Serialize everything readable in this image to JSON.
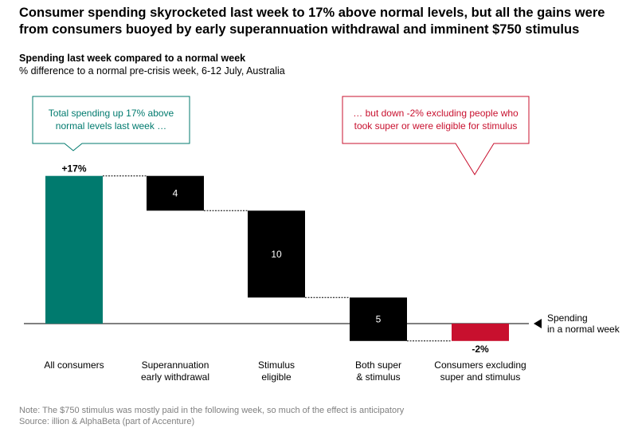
{
  "header": {
    "title_line1": "Consumer spending skyrocketed last week to 17% above normal levels, but all the gains were",
    "title_line2": "from consumers buoyed by early superannuation withdrawal and imminent $750 stimulus"
  },
  "chart_data": {
    "type": "bar",
    "subtype": "waterfall",
    "title": "Spending last week compared to a normal week",
    "subtitle": "% difference to a normal pre-crisis week, 6-12 July, Australia",
    "categories": [
      [
        "All consumers"
      ],
      [
        "Superannuation",
        "early withdrawal"
      ],
      [
        "Stimulus",
        "eligible"
      ],
      [
        "Both super",
        "& stimulus"
      ],
      [
        "Consumers excluding",
        "super and stimulus"
      ]
    ],
    "steps": [
      {
        "kind": "total",
        "value": 17,
        "label": "+17%",
        "color": "#007A6E"
      },
      {
        "kind": "decrease",
        "value": 4,
        "label": "4",
        "color": "#000000"
      },
      {
        "kind": "decrease",
        "value": 10,
        "label": "10",
        "color": "#000000"
      },
      {
        "kind": "decrease",
        "value": 5,
        "label": "5",
        "color": "#000000"
      },
      {
        "kind": "total",
        "value": -2,
        "label": "-2%",
        "color": "#C8102E"
      }
    ],
    "baseline_label": [
      "Spending",
      "in a normal week"
    ],
    "ylim": [
      -2.5,
      19
    ],
    "gridlines": false,
    "callouts": [
      {
        "lines": [
          "Total spending up 17% above",
          "normal levels last week …"
        ],
        "color": "#007A6E"
      },
      {
        "lines": [
          "… but down -2% excluding people who",
          "took super or were eligible for stimulus"
        ],
        "color": "#C8102E"
      }
    ]
  },
  "footer": {
    "note": "Note: The $750 stimulus was mostly paid in the following week, so much of the effect is anticipatory",
    "source": "Source: illion & AlphaBeta (part of Accenture)"
  }
}
